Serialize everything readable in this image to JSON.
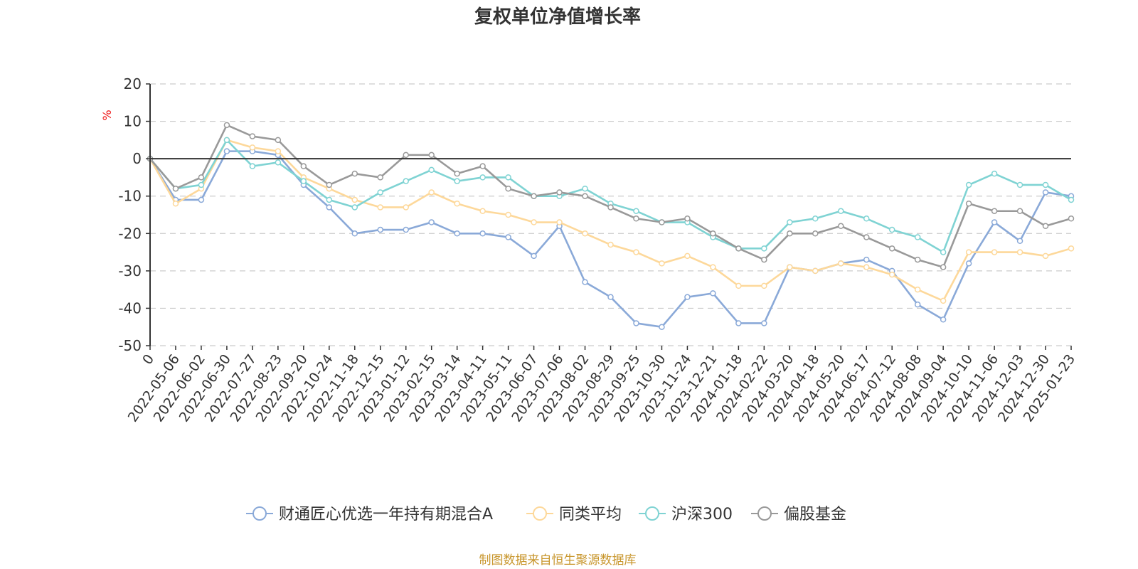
{
  "chart_data": {
    "type": "line",
    "title": "复权单位净值增长率",
    "ylabel": "%",
    "ylim": [
      -50,
      20
    ],
    "yticks": [
      20,
      10,
      0,
      -10,
      -20,
      -30,
      -40,
      -50
    ],
    "categories": [
      "0",
      "2022-05-06",
      "2022-06-02",
      "2022-06-30",
      "2022-07-27",
      "2022-08-23",
      "2022-09-20",
      "2022-10-24",
      "2022-11-18",
      "2022-12-15",
      "2023-01-12",
      "2023-02-15",
      "2023-03-14",
      "2023-04-11",
      "2023-05-11",
      "2023-06-07",
      "2023-07-06",
      "2023-08-02",
      "2023-08-29",
      "2023-09-25",
      "2023-10-30",
      "2023-11-24",
      "2023-12-21",
      "2024-01-18",
      "2024-02-22",
      "2024-03-20",
      "2024-04-18",
      "2024-05-20",
      "2024-06-17",
      "2024-07-12",
      "2024-08-08",
      "2024-09-04",
      "2024-10-10",
      "2024-11-06",
      "2024-12-03",
      "2024-12-30",
      "2025-01-23"
    ],
    "series": [
      {
        "name": "财通匠心优选一年持有期混合A",
        "color": "#8aa9d8",
        "values": [
          0,
          -11,
          -11,
          2,
          2,
          1,
          -7,
          -13,
          -20,
          -19,
          -19,
          -17,
          -20,
          -20,
          -21,
          -26,
          -18,
          -33,
          -37,
          -44,
          -45,
          -37,
          -36,
          -44,
          -44,
          -29,
          -30,
          -28,
          -27,
          -30,
          -39,
          -43,
          -28,
          -17,
          -22,
          -9,
          -10
        ]
      },
      {
        "name": "同类平均",
        "color": "#fdd89a",
        "values": [
          0,
          -12,
          -8,
          5,
          3,
          2,
          -5,
          -8,
          -11,
          -13,
          -13,
          -9,
          -12,
          -14,
          -15,
          -17,
          -17,
          -20,
          -23,
          -25,
          -28,
          -26,
          -29,
          -34,
          -34,
          -29,
          -30,
          -28,
          -29,
          -31,
          -35,
          -38,
          -25,
          -25,
          -25,
          -26,
          -24
        ]
      },
      {
        "name": "沪深300",
        "color": "#7fd3d3",
        "values": [
          0,
          -8,
          -7,
          5,
          -2,
          -1,
          -6,
          -11,
          -13,
          -9,
          -6,
          -3,
          -6,
          -5,
          -5,
          -10,
          -10,
          -8,
          -12,
          -14,
          -17,
          -17,
          -21,
          -24,
          -24,
          -17,
          -16,
          -14,
          -16,
          -19,
          -21,
          -25,
          -7,
          -4,
          -7,
          -7,
          -11
        ]
      },
      {
        "name": "偏股基金",
        "color": "#999999",
        "values": [
          0,
          -8,
          -5,
          9,
          6,
          5,
          -2,
          -7,
          -4,
          -5,
          1,
          1,
          -4,
          -2,
          -8,
          -10,
          -9,
          -10,
          -13,
          -16,
          -17,
          -16,
          -20,
          -24,
          -27,
          -20,
          -20,
          -18,
          -21,
          -24,
          -27,
          -29,
          -12,
          -14,
          -14,
          -18,
          -16
        ]
      }
    ],
    "grid": true,
    "legend_position": "bottom-center"
  },
  "source_note": "制图数据来自恒生聚源数据库",
  "colors": {
    "axis": "#333333",
    "grid": "#cccccc",
    "title": "#333333",
    "source": "#c8962c",
    "unit": "#ee1111"
  }
}
